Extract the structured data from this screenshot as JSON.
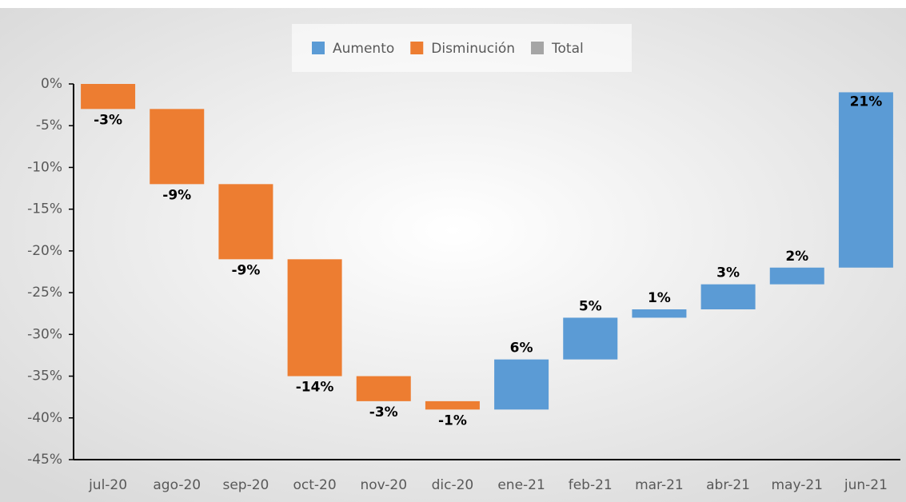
{
  "chart_data": {
    "type": "waterfall",
    "categories": [
      "jul-20",
      "ago-20",
      "sep-20",
      "oct-20",
      "nov-20",
      "dic-20",
      "ene-21",
      "feb-21",
      "mar-21",
      "abr-21",
      "may-21",
      "jun-21"
    ],
    "values": [
      -3,
      -9,
      -9,
      -14,
      -3,
      -1,
      6,
      5,
      1,
      3,
      2,
      21
    ],
    "value_labels": [
      "-3%",
      "-9%",
      "-9%",
      "-14%",
      "-3%",
      "-1%",
      "6%",
      "5%",
      "1%",
      "3%",
      "2%",
      "21%"
    ],
    "legend": [
      {
        "name": "Aumento",
        "color": "#5b9bd5"
      },
      {
        "name": "Disminución",
        "color": "#ed7d31"
      },
      {
        "name": "Total",
        "color": "#a5a5a5"
      }
    ],
    "ylim": [
      -45,
      0
    ],
    "yticks": [
      {
        "value": 0,
        "label": "0%"
      },
      {
        "value": -5,
        "label": "-5%"
      },
      {
        "value": -10,
        "label": "-10%"
      },
      {
        "value": -15,
        "label": "-15%"
      },
      {
        "value": -20,
        "label": "-20%"
      },
      {
        "value": -25,
        "label": "-25%"
      },
      {
        "value": -30,
        "label": "-30%"
      },
      {
        "value": -35,
        "label": "-35%"
      },
      {
        "value": -40,
        "label": "-40%"
      },
      {
        "value": -45,
        "label": "-45%"
      }
    ],
    "grid": false
  }
}
